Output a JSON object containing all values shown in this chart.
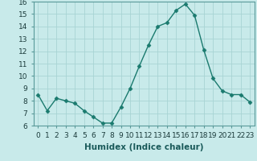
{
  "x": [
    0,
    1,
    2,
    3,
    4,
    5,
    6,
    7,
    8,
    9,
    10,
    11,
    12,
    13,
    14,
    15,
    16,
    17,
    18,
    19,
    20,
    21,
    22,
    23
  ],
  "y": [
    8.5,
    7.2,
    8.2,
    8.0,
    7.8,
    7.2,
    6.7,
    6.2,
    6.2,
    7.5,
    9.0,
    10.8,
    12.5,
    14.0,
    14.3,
    15.3,
    15.8,
    14.9,
    12.1,
    9.8,
    8.8,
    8.5,
    8.5,
    7.9
  ],
  "line_color": "#1a7a6e",
  "marker": "D",
  "markersize": 2.5,
  "linewidth": 1.0,
  "bg_color": "#c8eaea",
  "grid_color": "#a8d4d4",
  "xlabel": "Humidex (Indice chaleur)",
  "ylim": [
    6,
    16
  ],
  "xlim": [
    -0.5,
    23.5
  ],
  "yticks": [
    6,
    7,
    8,
    9,
    10,
    11,
    12,
    13,
    14,
    15,
    16
  ],
  "xticks": [
    0,
    1,
    2,
    3,
    4,
    5,
    6,
    7,
    8,
    9,
    10,
    11,
    12,
    13,
    14,
    15,
    16,
    17,
    18,
    19,
    20,
    21,
    22,
    23
  ],
  "xtick_labels": [
    "0",
    "1",
    "2",
    "3",
    "4",
    "5",
    "6",
    "7",
    "8",
    "9",
    "10",
    "11",
    "12",
    "13",
    "14",
    "15",
    "16",
    "17",
    "18",
    "19",
    "20",
    "21",
    "22",
    "23"
  ],
  "label_fontsize": 7.5,
  "tick_fontsize": 6.5
}
